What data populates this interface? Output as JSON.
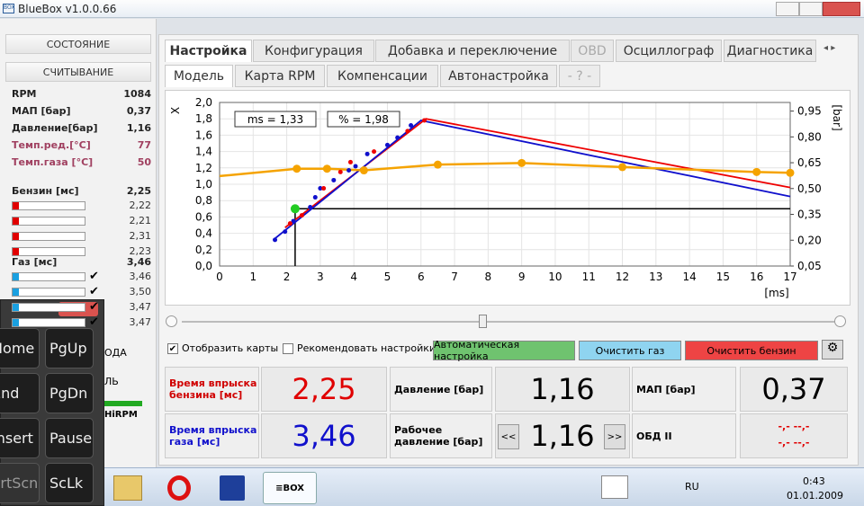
{
  "window": {
    "title": "BlueBox v1.0.0.66"
  },
  "sidebar": {
    "sections": [
      "СОСТОЯНИЕ",
      "СЧИТЫВАНИЕ"
    ],
    "readings": [
      {
        "label": "RPM",
        "value": "1084"
      },
      {
        "label": "МАП [бар]",
        "value": "0,37"
      },
      {
        "label": "Давление[бар]",
        "value": "1,16"
      },
      {
        "label": "Темп.ред.[°C]",
        "value": "77"
      },
      {
        "label": "Темп.газа [°C]",
        "value": "50"
      }
    ],
    "petrol": {
      "label": "Бензин [мс]",
      "value": "2,25",
      "injectors": [
        "2,22",
        "2,21",
        "2,31",
        "2,23"
      ]
    },
    "gas": {
      "label": "Газ [мс]",
      "value": "3,46",
      "injectors": [
        "3,46",
        "3,50",
        "3,47",
        "3,47"
      ]
    },
    "hidden": [
      "ОДА",
      "ЛЬ",
      "HiRPM"
    ]
  },
  "keyboard": {
    "keys": [
      "Home",
      "PgUp",
      "End",
      "PgDn",
      "Insert",
      "Pause",
      "PrtScn",
      "ScLk"
    ]
  },
  "tabs": [
    "Настройка",
    "Конфигурация",
    "Добавка и переключение",
    "OBD",
    "Осциллограф",
    "Диагностика"
  ],
  "subtabs": [
    "Модель",
    "Карта RPM",
    "Компенсации",
    "Автонастройка",
    "- ? -"
  ],
  "chart_data": {
    "type": "line",
    "y_label": "X",
    "y2_label": "[bar]",
    "x_label": "[ms]",
    "annotations": [
      "ms = 1,33",
      "% = 1,98"
    ],
    "xlim": [
      0,
      17
    ],
    "xticks": [
      0,
      1,
      2,
      3,
      4,
      5,
      6,
      7,
      8,
      9,
      10,
      11,
      12,
      13,
      14,
      15,
      16,
      17
    ],
    "ylim": [
      0,
      2.0
    ],
    "yticks": [
      {
        "value": 0,
        "label": "0,0"
      },
      {
        "value": 0.2,
        "label": "0,2"
      },
      {
        "value": 0.4,
        "label": "0,4"
      },
      {
        "value": 0.6,
        "label": "0,6"
      },
      {
        "value": 0.8,
        "label": "0,8"
      },
      {
        "value": 1.0,
        "label": "1,0"
      },
      {
        "value": 1.2,
        "label": "1,2"
      },
      {
        "value": 1.4,
        "label": "1,4"
      },
      {
        "value": 1.6,
        "label": "1,6"
      },
      {
        "value": 1.8,
        "label": "1,8"
      },
      {
        "value": 2.0,
        "label": "2,0"
      }
    ],
    "y2lim": [
      0.05,
      1.0
    ],
    "y2ticks": [
      {
        "value": 0.05,
        "label": "0,05"
      },
      {
        "value": 0.2,
        "label": "0,20"
      },
      {
        "value": 0.35,
        "label": "0,35"
      },
      {
        "value": 0.5,
        "label": "0,50"
      },
      {
        "value": 0.65,
        "label": "0,65"
      },
      {
        "value": 0.8,
        "label": "0,80"
      },
      {
        "value": 0.95,
        "label": "0,95"
      }
    ],
    "grid": true,
    "series": [
      {
        "style": "line",
        "color": "#ee0000",
        "x": [
          1.95,
          6.15,
          17
        ],
        "values": [
          0.47,
          1.8,
          0.96
        ]
      },
      {
        "style": "line",
        "color": "#1010cc",
        "x": [
          1.6,
          6.0,
          17
        ],
        "values": [
          0.32,
          1.78,
          0.85
        ]
      },
      {
        "style": "line",
        "markers": true,
        "color": "#f5a300",
        "x": [
          0,
          2.3,
          3.2,
          4.3,
          6.5,
          9,
          12,
          16,
          17
        ],
        "values": [
          1.1,
          1.19,
          1.19,
          1.17,
          1.24,
          1.26,
          1.21,
          1.15,
          1.14
        ]
      },
      {
        "style": "points",
        "color": "#1010cc",
        "x": [
          1.65,
          1.95,
          2.2,
          2.7,
          2.85,
          3.0,
          3.4,
          3.85,
          4.05,
          4.4,
          5.0,
          5.3,
          5.7
        ],
        "values": [
          0.32,
          0.42,
          0.55,
          0.72,
          0.84,
          0.95,
          1.05,
          1.17,
          1.22,
          1.37,
          1.48,
          1.57,
          1.72
        ]
      },
      {
        "style": "points",
        "color": "#ee0000",
        "x": [
          2.1,
          2.45,
          3.1,
          3.6,
          3.9,
          4.6,
          5.6,
          6.1
        ],
        "values": [
          0.52,
          0.62,
          0.95,
          1.15,
          1.27,
          1.4,
          1.65,
          1.78
        ]
      }
    ],
    "cursor": {
      "x": 2.25,
      "y": 0.7,
      "color": "#22cc22"
    }
  },
  "controls": {
    "checkboxes": [
      {
        "label": "Отобразить карты",
        "checked": true
      },
      {
        "label": "Рекомендовать настройки",
        "checked": false
      }
    ],
    "buttons": [
      "Автоматическая настройка",
      "Очистить газ",
      "Очистить бензин"
    ]
  },
  "panels": {
    "petrol_time": {
      "label": "Время впрыска бензина [мс]",
      "value": "2,25"
    },
    "gas_time": {
      "label": "Время впрыска газа [мс]",
      "value": "3,46"
    },
    "pressure": {
      "label": "Давление [бар]",
      "value": "1,16"
    },
    "work_pressure": {
      "label": "Рабочее давление [бар]",
      "value": "1,16",
      "prev": "<<",
      "next": ">>"
    },
    "map": {
      "label": "МАП [бар]",
      "value": "0,37"
    },
    "obd": {
      "label": "ОБД II",
      "value": [
        "-,- --,-",
        "-,- --,-"
      ]
    }
  },
  "taskbar": {
    "language": "RU",
    "time": "0:43",
    "date": "01.01.2009"
  }
}
